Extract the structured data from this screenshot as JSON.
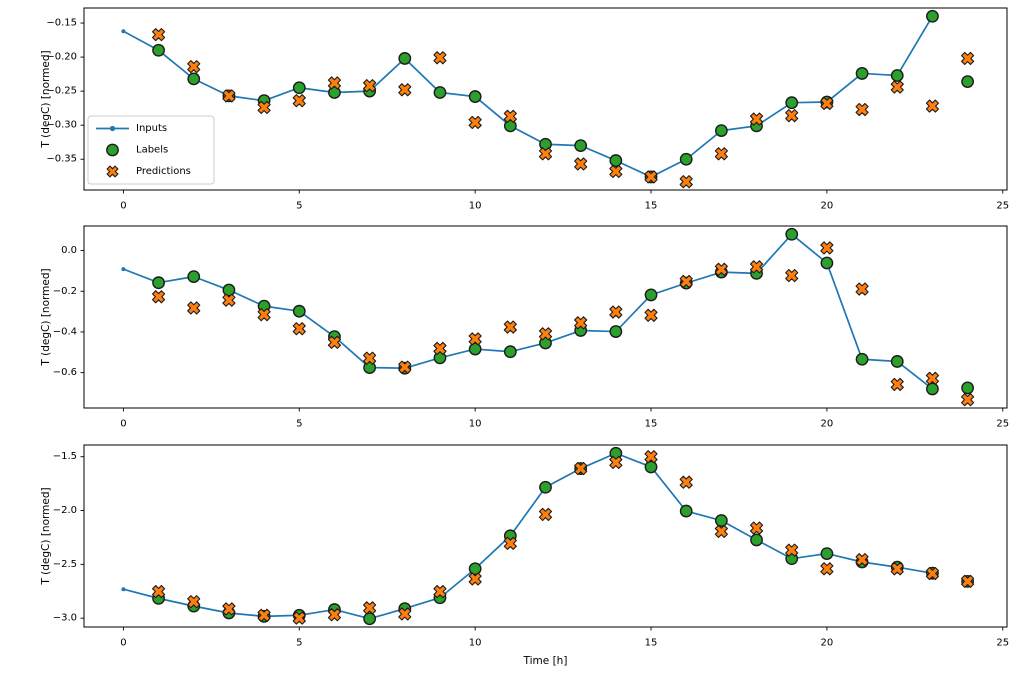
{
  "figure": {
    "xlabel": "Time [h]",
    "background": "#ffffff",
    "legend": {
      "items": [
        {
          "key": "inputs",
          "label": "Inputs"
        },
        {
          "key": "labels",
          "label": "Labels"
        },
        {
          "key": "predictions",
          "label": "Predictions"
        }
      ]
    },
    "colors": {
      "inputs": "#1f77b4",
      "labels": "#2ca02c",
      "predictions": "#ff7f0e",
      "marker_edge": "#1c1c1c",
      "axis": "#000000",
      "legend_border": "#cccccc"
    }
  },
  "chart_data": [
    {
      "type": "line",
      "title": "",
      "ylabel": "T (degC) [normed]",
      "xlim": [
        -1.12,
        25.12
      ],
      "ylim": [
        -0.3952,
        -0.1279
      ],
      "x_ticks": [
        0,
        5,
        10,
        15,
        20,
        25
      ],
      "y_ticks": [
        -0.15,
        -0.2,
        -0.25,
        -0.3,
        -0.35
      ],
      "y_tick_labels": [
        "−0.15",
        "−0.20",
        "−0.25",
        "−0.30",
        "−0.35"
      ],
      "grid": false,
      "legend_position": "upper-left-inside",
      "series": [
        {
          "name": "Inputs",
          "style": "line-dot",
          "x": [
            0,
            1,
            2,
            3,
            4,
            5,
            6,
            7,
            8,
            9,
            10,
            11,
            12,
            13,
            14,
            15,
            16,
            17,
            18,
            19,
            20,
            21,
            22,
            23
          ],
          "y": [
            -0.162,
            -0.19,
            -0.232,
            -0.257,
            -0.264,
            -0.245,
            -0.252,
            -0.25,
            -0.202,
            -0.252,
            -0.258,
            -0.301,
            -0.328,
            -0.33,
            -0.352,
            -0.376,
            -0.35,
            -0.308,
            -0.301,
            -0.267,
            -0.266,
            -0.224,
            -0.227,
            -0.14
          ]
        },
        {
          "name": "Labels",
          "style": "scatter-circle",
          "x": [
            1,
            2,
            3,
            4,
            5,
            6,
            7,
            8,
            9,
            10,
            11,
            12,
            13,
            14,
            15,
            16,
            17,
            18,
            19,
            20,
            21,
            22,
            23,
            24
          ],
          "y": [
            -0.19,
            -0.232,
            -0.257,
            -0.264,
            -0.245,
            -0.252,
            -0.25,
            -0.202,
            -0.252,
            -0.258,
            -0.301,
            -0.328,
            -0.33,
            -0.352,
            -0.376,
            -0.35,
            -0.308,
            -0.301,
            -0.267,
            -0.266,
            -0.224,
            -0.227,
            -0.14,
            -0.236
          ]
        },
        {
          "name": "Predictions",
          "style": "scatter-x",
          "x": [
            1,
            2,
            3,
            4,
            5,
            6,
            7,
            8,
            9,
            10,
            11,
            12,
            13,
            14,
            15,
            16,
            17,
            18,
            19,
            20,
            21,
            22,
            23,
            24
          ],
          "y": [
            -0.167,
            -0.214,
            -0.257,
            -0.274,
            -0.264,
            -0.238,
            -0.242,
            -0.248,
            -0.201,
            -0.296,
            -0.287,
            -0.342,
            -0.357,
            -0.368,
            -0.376,
            -0.383,
            -0.342,
            -0.291,
            -0.286,
            -0.268,
            -0.277,
            -0.244,
            -0.272,
            -0.202
          ]
        }
      ]
    },
    {
      "type": "line",
      "title": "",
      "ylabel": "T (degC) [normed]",
      "xlim": [
        -1.12,
        25.12
      ],
      "ylim": [
        -0.7737,
        0.1207
      ],
      "x_ticks": [
        0,
        5,
        10,
        15,
        20,
        25
      ],
      "y_ticks": [
        0.0,
        -0.2,
        -0.4,
        -0.6
      ],
      "y_tick_labels": [
        "0.0",
        "−0.2",
        "−0.4",
        "−0.6"
      ],
      "grid": false,
      "legend_position": "none",
      "series": [
        {
          "name": "Inputs",
          "style": "line-dot",
          "x": [
            0,
            1,
            2,
            3,
            4,
            5,
            6,
            7,
            8,
            9,
            10,
            11,
            12,
            13,
            14,
            15,
            16,
            17,
            18,
            19,
            20,
            21,
            22,
            23
          ],
          "y": [
            -0.091,
            -0.158,
            -0.128,
            -0.194,
            -0.273,
            -0.298,
            -0.423,
            -0.575,
            -0.578,
            -0.527,
            -0.484,
            -0.497,
            -0.454,
            -0.393,
            -0.398,
            -0.218,
            -0.16,
            -0.106,
            -0.112,
            0.08,
            -0.061,
            -0.534,
            -0.545,
            -0.68
          ]
        },
        {
          "name": "Labels",
          "style": "scatter-circle",
          "x": [
            1,
            2,
            3,
            4,
            5,
            6,
            7,
            8,
            9,
            10,
            11,
            12,
            13,
            14,
            15,
            16,
            17,
            18,
            19,
            20,
            21,
            22,
            23,
            24
          ],
          "y": [
            -0.158,
            -0.128,
            -0.194,
            -0.273,
            -0.298,
            -0.423,
            -0.575,
            -0.578,
            -0.527,
            -0.484,
            -0.497,
            -0.454,
            -0.393,
            -0.398,
            -0.218,
            -0.16,
            -0.106,
            -0.112,
            0.08,
            -0.061,
            -0.534,
            -0.545,
            -0.68,
            -0.675
          ]
        },
        {
          "name": "Predictions",
          "style": "scatter-x",
          "x": [
            1,
            2,
            3,
            4,
            5,
            6,
            7,
            8,
            9,
            10,
            11,
            12,
            13,
            14,
            15,
            16,
            17,
            18,
            19,
            20,
            21,
            22,
            23,
            24
          ],
          "y": [
            -0.227,
            -0.282,
            -0.244,
            -0.315,
            -0.384,
            -0.451,
            -0.529,
            -0.573,
            -0.481,
            -0.434,
            -0.376,
            -0.409,
            -0.355,
            -0.302,
            -0.318,
            -0.152,
            -0.092,
            -0.08,
            -0.123,
            0.013,
            -0.189,
            -0.658,
            -0.628,
            -0.733
          ]
        }
      ]
    },
    {
      "type": "line",
      "title": "",
      "ylabel": "T (degC) [normed]",
      "xlabel": "Time [h]",
      "xlim": [
        -1.12,
        25.12
      ],
      "ylim": [
        -3.0819,
        -1.3912
      ],
      "x_ticks": [
        0,
        5,
        10,
        15,
        20,
        25
      ],
      "y_ticks": [
        -1.5,
        -2.0,
        -2.5,
        -3.0
      ],
      "y_tick_labels": [
        "−1.5",
        "−2.0",
        "−2.5",
        "−3.0"
      ],
      "grid": false,
      "legend_position": "none",
      "series": [
        {
          "name": "Inputs",
          "style": "line-dot",
          "x": [
            0,
            1,
            2,
            3,
            4,
            5,
            6,
            7,
            8,
            9,
            10,
            11,
            12,
            13,
            14,
            15,
            16,
            17,
            18,
            19,
            20,
            21,
            22,
            23
          ],
          "y": [
            -2.731,
            -2.816,
            -2.888,
            -2.952,
            -2.983,
            -2.973,
            -2.92,
            -3.005,
            -2.911,
            -2.81,
            -2.541,
            -2.235,
            -1.784,
            -1.61,
            -1.468,
            -1.595,
            -2.005,
            -2.093,
            -2.273,
            -2.447,
            -2.4,
            -2.478,
            -2.526,
            -2.582
          ]
        },
        {
          "name": "Labels",
          "style": "scatter-circle",
          "x": [
            1,
            2,
            3,
            4,
            5,
            6,
            7,
            8,
            9,
            10,
            11,
            12,
            13,
            14,
            15,
            16,
            17,
            18,
            19,
            20,
            21,
            22,
            23,
            24
          ],
          "y": [
            -2.816,
            -2.888,
            -2.952,
            -2.983,
            -2.973,
            -2.92,
            -3.005,
            -2.911,
            -2.81,
            -2.541,
            -2.235,
            -1.784,
            -1.61,
            -1.468,
            -1.595,
            -2.005,
            -2.093,
            -2.273,
            -2.447,
            -2.4,
            -2.478,
            -2.526,
            -2.582,
            -2.658
          ]
        },
        {
          "name": "Predictions",
          "style": "scatter-x",
          "x": [
            1,
            2,
            3,
            4,
            5,
            6,
            7,
            8,
            9,
            10,
            11,
            12,
            13,
            14,
            15,
            16,
            17,
            18,
            19,
            20,
            21,
            22,
            23,
            24
          ],
          "y": [
            -2.753,
            -2.847,
            -2.914,
            -2.973,
            -2.999,
            -2.968,
            -2.904,
            -2.961,
            -2.753,
            -2.636,
            -2.305,
            -2.036,
            -1.61,
            -1.553,
            -1.5,
            -1.737,
            -2.194,
            -2.163,
            -2.368,
            -2.541,
            -2.456,
            -2.541,
            -2.585,
            -2.658
          ]
        }
      ]
    }
  ]
}
